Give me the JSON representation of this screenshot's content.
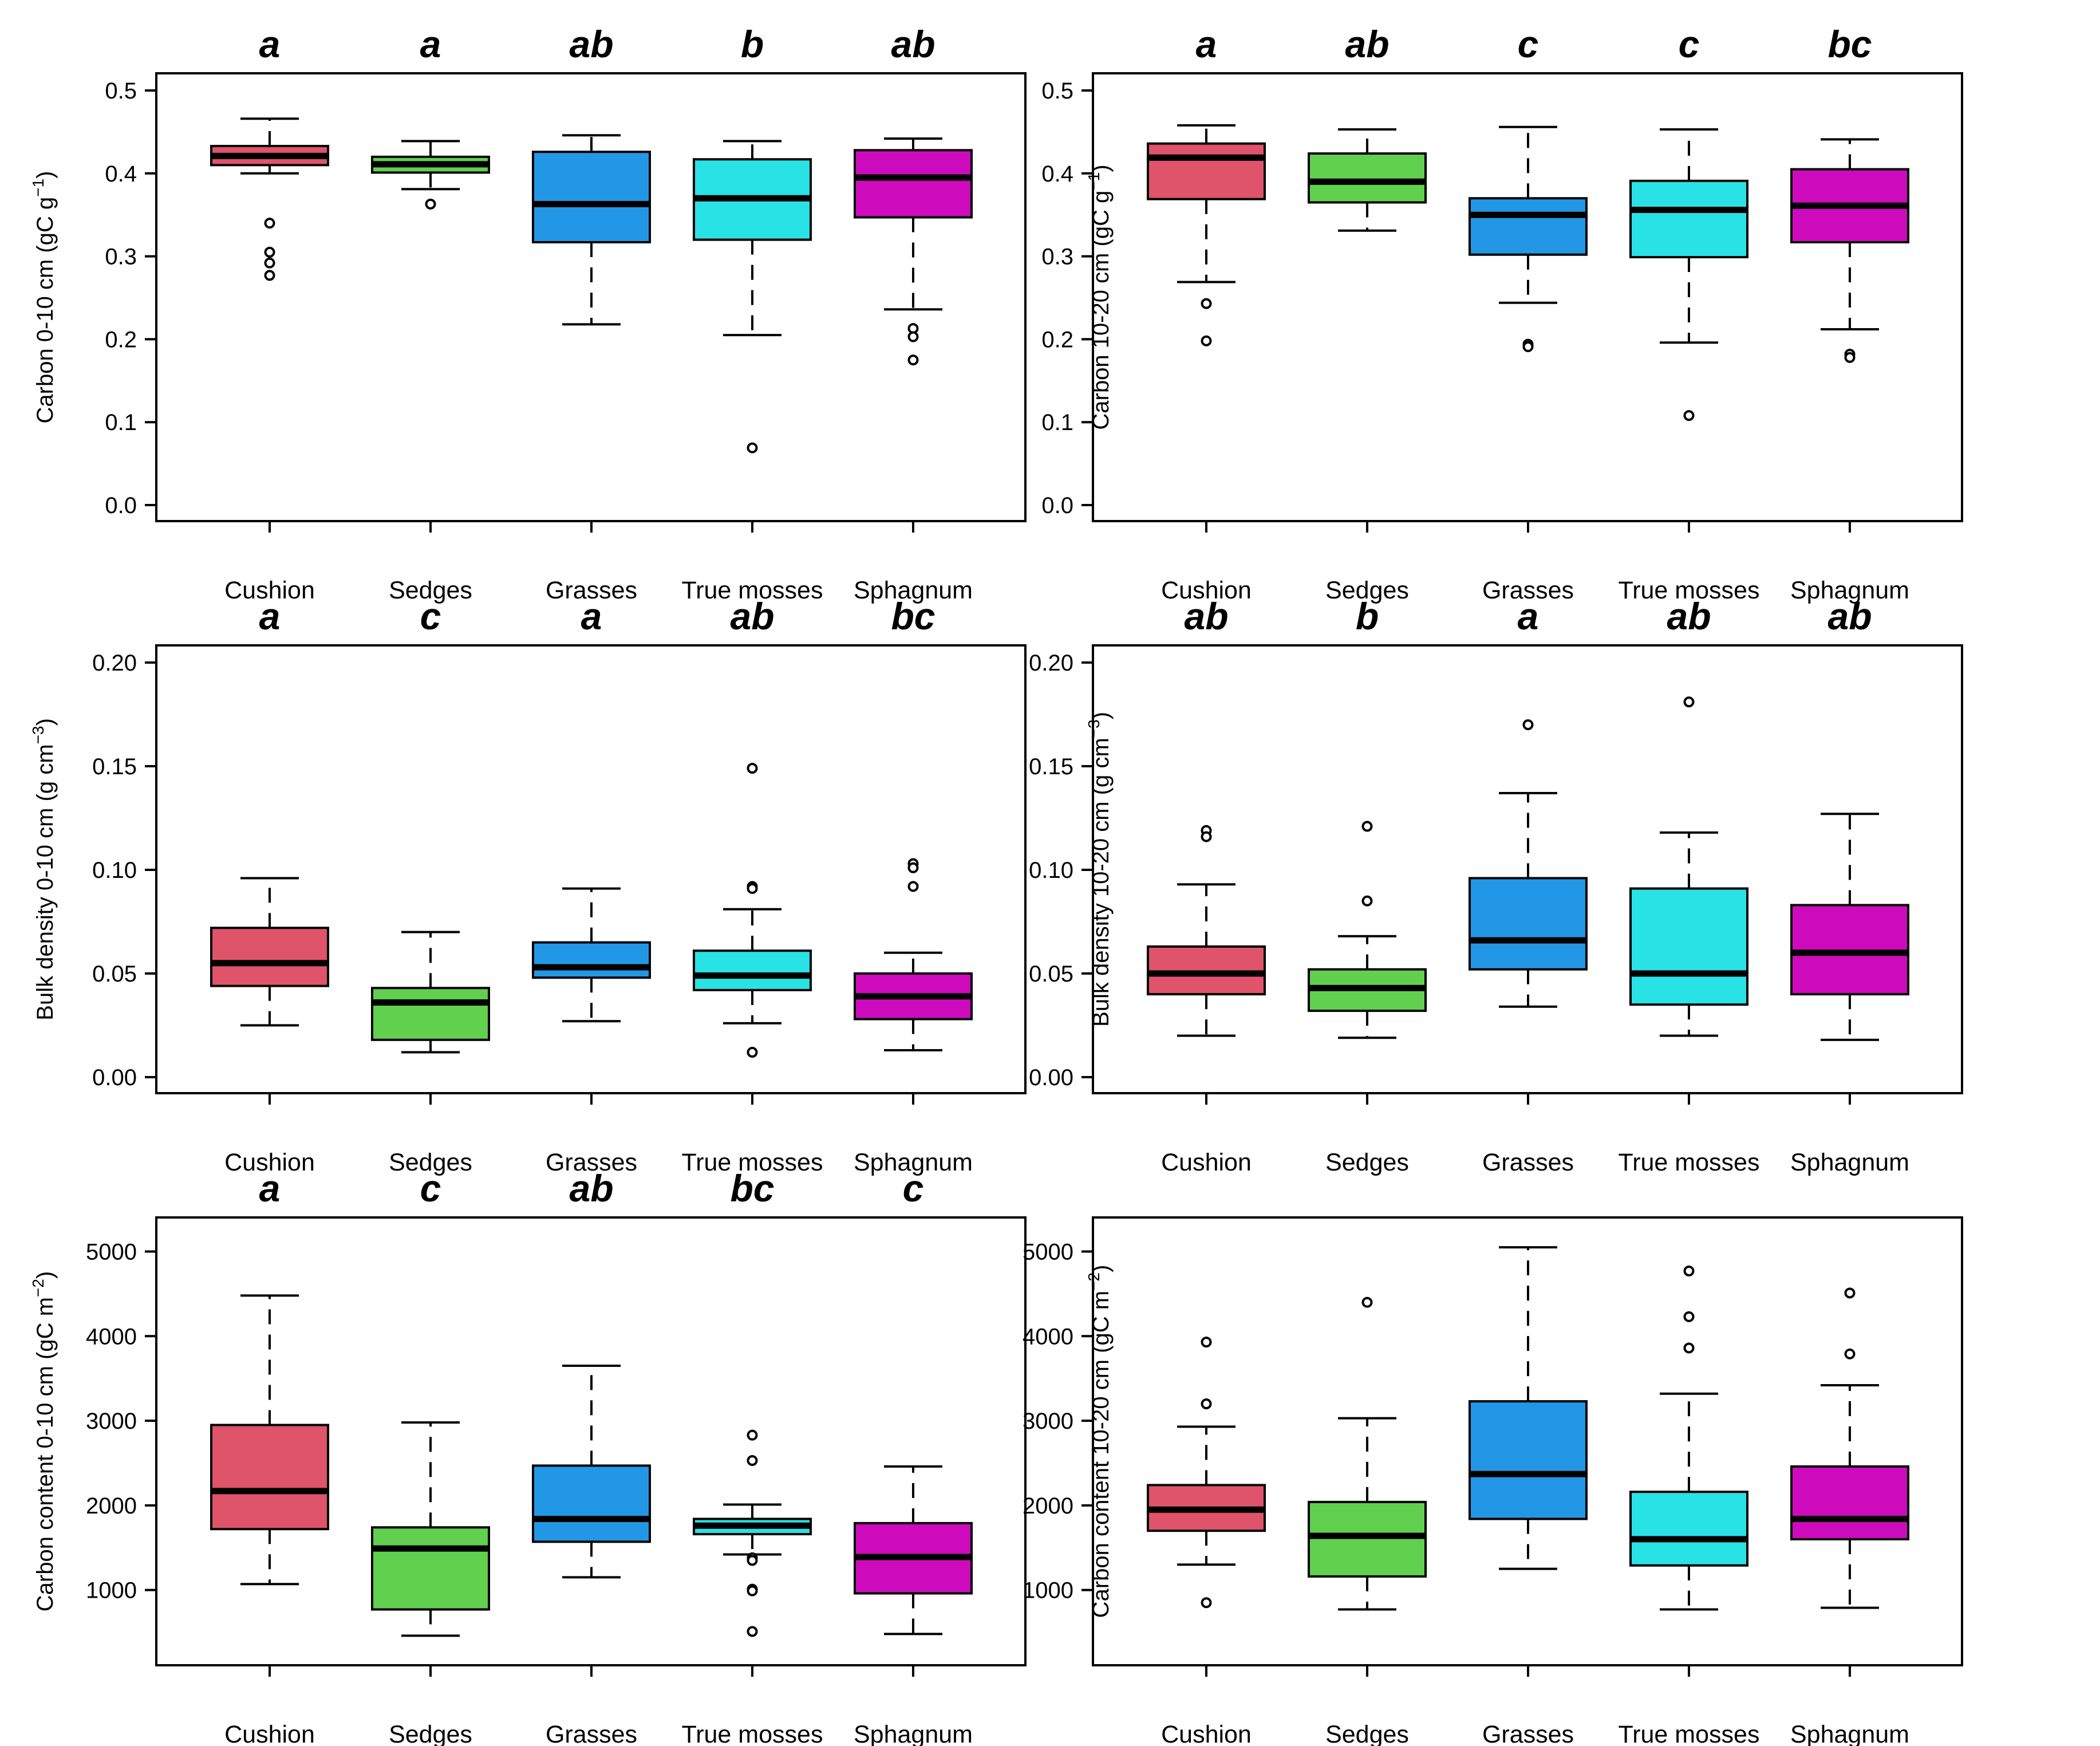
{
  "chart_data": [
    {
      "type": "boxplot",
      "panel": "top-left",
      "ylabel": {
        "main": "Carbon  0-10 cm (gC g",
        "sup": "−1",
        "end": ")"
      },
      "ylim": [
        0,
        0.5
      ],
      "yticks": [
        0.0,
        0.1,
        0.2,
        0.3,
        0.4,
        0.5
      ],
      "ytick_labels": [
        "0.0",
        "0.1",
        "0.2",
        "0.3",
        "0.4",
        "0.5"
      ],
      "categories": [
        "Cushion",
        "Sedges",
        "Grasses",
        "True mosses",
        "Sphagnum"
      ],
      "letters": [
        "a",
        "a",
        "ab",
        "b",
        "ab"
      ],
      "boxes": [
        {
          "lw": 0.4,
          "q1": 0.41,
          "med": 0.421,
          "q3": 0.433,
          "uw": 0.466,
          "outliers": [
            0.34,
            0.305,
            0.292,
            0.277
          ]
        },
        {
          "lw": 0.381,
          "q1": 0.401,
          "med": 0.411,
          "q3": 0.42,
          "uw": 0.439,
          "outliers": [
            0.363
          ]
        },
        {
          "lw": 0.218,
          "q1": 0.317,
          "med": 0.363,
          "q3": 0.426,
          "uw": 0.446,
          "outliers": []
        },
        {
          "lw": 0.205,
          "q1": 0.32,
          "med": 0.37,
          "q3": 0.417,
          "uw": 0.439,
          "outliers": [
            0.069
          ]
        },
        {
          "lw": 0.236,
          "q1": 0.347,
          "med": 0.395,
          "q3": 0.428,
          "uw": 0.442,
          "outliers": [
            0.213,
            0.203,
            0.175
          ]
        }
      ]
    },
    {
      "type": "boxplot",
      "panel": "top-right",
      "ylabel": {
        "main": "Carbon  10-20 cm (gC g",
        "sup": "−1",
        "end": ")"
      },
      "ylim": [
        0,
        0.5
      ],
      "yticks": [
        0.0,
        0.1,
        0.2,
        0.3,
        0.4,
        0.5
      ],
      "ytick_labels": [
        "0.0",
        "0.1",
        "0.2",
        "0.3",
        "0.4",
        "0.5"
      ],
      "categories": [
        "Cushion",
        "Sedges",
        "Grasses",
        "True mosses",
        "Sphagnum"
      ],
      "letters": [
        "a",
        "ab",
        "c",
        "c",
        "bc"
      ],
      "boxes": [
        {
          "lw": 0.269,
          "q1": 0.369,
          "med": 0.419,
          "q3": 0.436,
          "uw": 0.458,
          "outliers": [
            0.243,
            0.198
          ]
        },
        {
          "lw": 0.331,
          "q1": 0.365,
          "med": 0.39,
          "q3": 0.424,
          "uw": 0.453,
          "outliers": []
        },
        {
          "lw": 0.244,
          "q1": 0.302,
          "med": 0.35,
          "q3": 0.37,
          "uw": 0.456,
          "outliers": [
            0.194,
            0.191
          ]
        },
        {
          "lw": 0.196,
          "q1": 0.299,
          "med": 0.356,
          "q3": 0.391,
          "uw": 0.453,
          "outliers": [
            0.108
          ]
        },
        {
          "lw": 0.212,
          "q1": 0.317,
          "med": 0.361,
          "q3": 0.405,
          "uw": 0.441,
          "outliers": [
            0.182,
            0.178
          ]
        }
      ]
    },
    {
      "type": "boxplot",
      "panel": "middle-left",
      "ylabel": {
        "main": "Bulk density 0-10 cm (g cm",
        "sup": "−3",
        "end": ")"
      },
      "ylim": [
        0,
        0.2
      ],
      "yticks": [
        0.0,
        0.05,
        0.1,
        0.15,
        0.2
      ],
      "ytick_labels": [
        "0.00",
        "0.05",
        "0.10",
        "0.15",
        "0.20"
      ],
      "categories": [
        "Cushion",
        "Sedges",
        "Grasses",
        "True mosses",
        "Sphagnum"
      ],
      "letters": [
        "a",
        "c",
        "a",
        "ab",
        "bc"
      ],
      "boxes": [
        {
          "lw": 0.025,
          "q1": 0.044,
          "med": 0.055,
          "q3": 0.072,
          "uw": 0.096,
          "outliers": []
        },
        {
          "lw": 0.012,
          "q1": 0.018,
          "med": 0.036,
          "q3": 0.043,
          "uw": 0.07,
          "outliers": []
        },
        {
          "lw": 0.027,
          "q1": 0.048,
          "med": 0.053,
          "q3": 0.065,
          "uw": 0.091,
          "outliers": []
        },
        {
          "lw": 0.026,
          "q1": 0.042,
          "med": 0.049,
          "q3": 0.061,
          "uw": 0.081,
          "outliers": [
            0.149,
            0.092,
            0.091,
            0.012
          ]
        },
        {
          "lw": 0.013,
          "q1": 0.028,
          "med": 0.039,
          "q3": 0.05,
          "uw": 0.06,
          "outliers": [
            0.103,
            0.101,
            0.092
          ]
        }
      ]
    },
    {
      "type": "boxplot",
      "panel": "middle-right",
      "ylabel": {
        "main": "Bulk density 10-20 cm (g cm",
        "sup": "−3",
        "end": ")"
      },
      "ylim": [
        0,
        0.2
      ],
      "yticks": [
        0.0,
        0.05,
        0.1,
        0.15,
        0.2
      ],
      "ytick_labels": [
        "0.00",
        "0.05",
        "0.10",
        "0.15",
        "0.20"
      ],
      "categories": [
        "Cushion",
        "Sedges",
        "Grasses",
        "True mosses",
        "Sphagnum"
      ],
      "letters": [
        "ab",
        "b",
        "a",
        "ab",
        "ab"
      ],
      "boxes": [
        {
          "lw": 0.02,
          "q1": 0.04,
          "med": 0.05,
          "q3": 0.063,
          "uw": 0.093,
          "outliers": [
            0.119,
            0.116
          ]
        },
        {
          "lw": 0.019,
          "q1": 0.032,
          "med": 0.043,
          "q3": 0.052,
          "uw": 0.068,
          "outliers": [
            0.121,
            0.085
          ]
        },
        {
          "lw": 0.034,
          "q1": 0.052,
          "med": 0.066,
          "q3": 0.096,
          "uw": 0.137,
          "outliers": [
            0.17
          ]
        },
        {
          "lw": 0.02,
          "q1": 0.035,
          "med": 0.05,
          "q3": 0.091,
          "uw": 0.118,
          "outliers": [
            0.181
          ]
        },
        {
          "lw": 0.018,
          "q1": 0.04,
          "med": 0.06,
          "q3": 0.083,
          "uw": 0.127,
          "outliers": []
        }
      ]
    },
    {
      "type": "boxplot",
      "panel": "bottom-left",
      "ylabel": {
        "main": "Carbon content 0-10 cm (gC m",
        "sup": "−2",
        "end": ")"
      },
      "ylim": [
        300,
        5200
      ],
      "yticks": [
        1000,
        2000,
        3000,
        4000,
        5000
      ],
      "ytick_labels": [
        "1000",
        "2000",
        "3000",
        "4000",
        "5000"
      ],
      "categories": [
        "Cushion",
        "Sedges",
        "Grasses",
        "True mosses",
        "Sphagnum"
      ],
      "letters": [
        "a",
        "c",
        "ab",
        "bc",
        "c"
      ],
      "boxes": [
        {
          "lw": 1070,
          "q1": 1720,
          "med": 2170,
          "q3": 2950,
          "uw": 4480,
          "outliers": []
        },
        {
          "lw": 460,
          "q1": 770,
          "med": 1490,
          "q3": 1740,
          "uw": 2980,
          "outliers": []
        },
        {
          "lw": 1150,
          "q1": 1570,
          "med": 1840,
          "q3": 2470,
          "uw": 3650,
          "outliers": []
        },
        {
          "lw": 1420,
          "q1": 1660,
          "med": 1760,
          "q3": 1840,
          "uw": 2010,
          "outliers": [
            2830,
            2530,
            1380,
            1350,
            1010,
            990,
            510
          ]
        },
        {
          "lw": 480,
          "q1": 960,
          "med": 1390,
          "q3": 1790,
          "uw": 2460,
          "outliers": []
        }
      ]
    },
    {
      "type": "boxplot",
      "panel": "bottom-right",
      "ylabel": {
        "main": "Carbon content 10-20 cm (gC m",
        "sup": "−2",
        "end": ")"
      },
      "ylim": [
        300,
        5200
      ],
      "yticks": [
        1000,
        2000,
        3000,
        4000,
        5000
      ],
      "ytick_labels": [
        "1000",
        "2000",
        "3000",
        "4000",
        "5000"
      ],
      "categories": [
        "Cushion",
        "Sedges",
        "Grasses",
        "True mosses",
        "Sphagnum"
      ],
      "letters": [
        "",
        "",
        "",
        "",
        ""
      ],
      "boxes": [
        {
          "lw": 1300,
          "q1": 1700,
          "med": 1950,
          "q3": 2240,
          "uw": 2930,
          "outliers": [
            3930,
            3200,
            850
          ]
        },
        {
          "lw": 770,
          "q1": 1160,
          "med": 1640,
          "q3": 2040,
          "uw": 3030,
          "outliers": [
            4400
          ]
        },
        {
          "lw": 1250,
          "q1": 1840,
          "med": 2370,
          "q3": 3230,
          "uw": 5050,
          "outliers": []
        },
        {
          "lw": 770,
          "q1": 1290,
          "med": 1600,
          "q3": 2160,
          "uw": 3320,
          "outliers": [
            4770,
            4230,
            3860
          ]
        },
        {
          "lw": 790,
          "q1": 1600,
          "med": 1840,
          "q3": 2460,
          "uw": 3420,
          "outliers": [
            4510,
            3790
          ]
        }
      ]
    }
  ],
  "colors": {
    "Cushion": "#df536b",
    "Sedges": "#61d04f",
    "Grasses": "#2297e6",
    "True mosses": "#28e2e5",
    "Sphagnum": "#cd0bbc"
  }
}
